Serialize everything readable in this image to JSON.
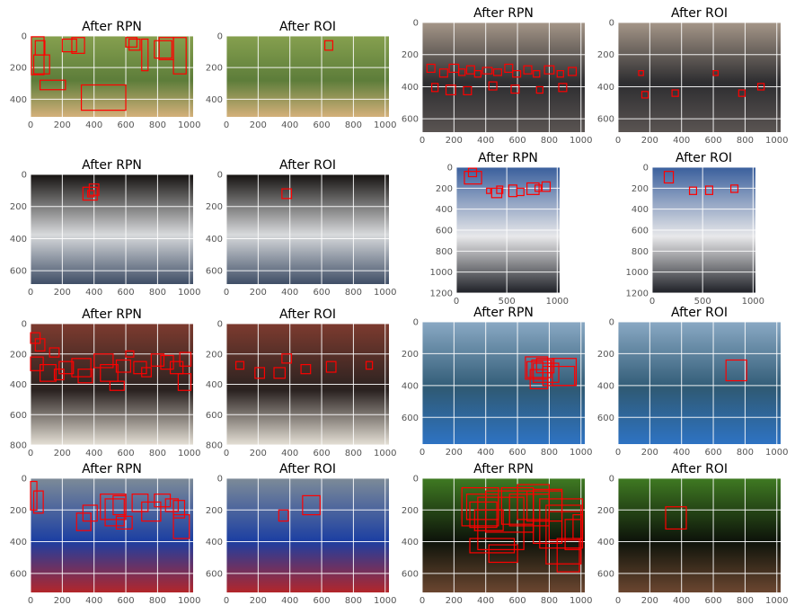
{
  "chart_data": [
    {
      "type": "image",
      "title": "After RPN",
      "xticks": [
        "0",
        "200",
        "400",
        "600",
        "800",
        "1000"
      ],
      "yticks": [
        "0",
        "200",
        "400"
      ],
      "xlim": [
        0,
        1024
      ],
      "ylim": [
        512,
        0
      ],
      "tint": [
        "#86a04f",
        "#5d7d3a",
        "#d4b07a"
      ],
      "boxes": [
        [
          5,
          5,
          80,
          240
        ],
        [
          30,
          30,
          60,
          90
        ],
        [
          200,
          20,
          90,
          80
        ],
        [
          260,
          10,
          80,
          100
        ],
        [
          600,
          10,
          70,
          60
        ],
        [
          620,
          20,
          70,
          70
        ],
        [
          700,
          20,
          40,
          200
        ],
        [
          780,
          30,
          110,
          110
        ],
        [
          810,
          10,
          90,
          140
        ],
        [
          900,
          10,
          80,
          230
        ],
        [
          20,
          120,
          100,
          120
        ],
        [
          60,
          280,
          160,
          60
        ],
        [
          320,
          310,
          280,
          160
        ]
      ]
    },
    {
      "type": "image",
      "title": "After ROI",
      "xticks": [
        "0",
        "200",
        "400",
        "600",
        "800",
        "1000"
      ],
      "yticks": [
        "0",
        "200",
        "400"
      ],
      "xlim": [
        0,
        1024
      ],
      "ylim": [
        512,
        0
      ],
      "tint": [
        "#86a04f",
        "#5d7d3a",
        "#d4b07a"
      ],
      "boxes": [
        [
          620,
          30,
          50,
          60
        ]
      ]
    },
    {
      "type": "image",
      "title": "After RPN",
      "xticks": [
        "0",
        "200",
        "400",
        "600",
        "800",
        "1000"
      ],
      "yticks": [
        "0",
        "200",
        "400",
        "600"
      ],
      "xlim": [
        0,
        1024
      ],
      "ylim": [
        683,
        0
      ],
      "tint": [
        "#a59688",
        "#2d2d30",
        "#5a5452"
      ],
      "boxes": [
        [
          30,
          260,
          50,
          50
        ],
        [
          110,
          290,
          50,
          50
        ],
        [
          170,
          260,
          60,
          50
        ],
        [
          230,
          290,
          40,
          40
        ],
        [
          280,
          270,
          50,
          50
        ],
        [
          330,
          300,
          40,
          40
        ],
        [
          380,
          280,
          60,
          40
        ],
        [
          450,
          290,
          50,
          40
        ],
        [
          520,
          260,
          50,
          50
        ],
        [
          570,
          300,
          50,
          40
        ],
        [
          640,
          270,
          50,
          50
        ],
        [
          700,
          300,
          40,
          40
        ],
        [
          770,
          270,
          60,
          50
        ],
        [
          850,
          300,
          40,
          40
        ],
        [
          920,
          280,
          50,
          50
        ],
        [
          60,
          380,
          40,
          50
        ],
        [
          150,
          390,
          60,
          60
        ],
        [
          260,
          400,
          50,
          50
        ],
        [
          420,
          370,
          50,
          50
        ],
        [
          560,
          390,
          50,
          50
        ],
        [
          720,
          400,
          40,
          40
        ],
        [
          860,
          380,
          50,
          50
        ]
      ]
    },
    {
      "type": "image",
      "title": "After ROI",
      "xticks": [
        "0",
        "200",
        "400",
        "600",
        "800",
        "1000"
      ],
      "yticks": [
        "0",
        "200",
        "400",
        "600"
      ],
      "xlim": [
        0,
        1024
      ],
      "ylim": [
        683,
        0
      ],
      "tint": [
        "#a59688",
        "#2d2d30",
        "#5a5452"
      ],
      "boxes": [
        [
          130,
          300,
          30,
          30
        ],
        [
          600,
          300,
          30,
          30
        ],
        [
          150,
          430,
          40,
          40
        ],
        [
          340,
          420,
          40,
          40
        ],
        [
          760,
          420,
          40,
          40
        ],
        [
          880,
          380,
          40,
          40
        ]
      ]
    },
    {
      "type": "image",
      "title": "After RPN",
      "xticks": [
        "0",
        "200",
        "400",
        "600",
        "800",
        "1000"
      ],
      "yticks": [
        "0",
        "200",
        "400",
        "600"
      ],
      "xlim": [
        0,
        1024
      ],
      "ylim": [
        683,
        0
      ],
      "tint": [
        "#151210",
        "#d8dadc",
        "#3f4e66"
      ],
      "boxes": [
        [
          330,
          80,
          90,
          80
        ],
        [
          370,
          60,
          60,
          70
        ],
        [
          360,
          100,
          40,
          40
        ]
      ]
    },
    {
      "type": "image",
      "title": "After ROI",
      "xticks": [
        "0",
        "200",
        "400",
        "600",
        "800",
        "1000"
      ],
      "yticks": [
        "0",
        "200",
        "400",
        "600"
      ],
      "xlim": [
        0,
        1024
      ],
      "ylim": [
        683,
        0
      ],
      "tint": [
        "#151210",
        "#d8dadc",
        "#3f4e66"
      ],
      "boxes": [
        [
          350,
          90,
          60,
          60
        ]
      ]
    },
    {
      "type": "image",
      "title": "After RPN",
      "xticks": [
        "0",
        "500",
        "1000"
      ],
      "yticks": [
        "0",
        "200",
        "400",
        "600",
        "800",
        "1000",
        "1200"
      ],
      "xlim": [
        0,
        1024
      ],
      "ylim": [
        1200,
        0
      ],
      "tint": [
        "#3a5f9c",
        "#e8e8ea",
        "#1e2026"
      ],
      "boxes": [
        [
          80,
          40,
          170,
          120
        ],
        [
          120,
          10,
          80,
          80
        ],
        [
          350,
          200,
          100,
          90
        ],
        [
          400,
          180,
          60,
          70
        ],
        [
          520,
          170,
          80,
          110
        ],
        [
          600,
          200,
          70,
          70
        ],
        [
          700,
          150,
          120,
          110
        ],
        [
          780,
          170,
          60,
          60
        ],
        [
          850,
          140,
          80,
          90
        ],
        [
          300,
          200,
          40,
          50
        ]
      ]
    },
    {
      "type": "image",
      "title": "After ROI",
      "xticks": [
        "0",
        "500",
        "1000"
      ],
      "yticks": [
        "0",
        "200",
        "400",
        "600",
        "800",
        "1000",
        "1200"
      ],
      "xlim": [
        0,
        1024
      ],
      "ylim": [
        1200,
        0
      ],
      "tint": [
        "#3a5f9c",
        "#e8e8ea",
        "#1e2026"
      ],
      "boxes": [
        [
          120,
          40,
          90,
          110
        ],
        [
          370,
          190,
          70,
          70
        ],
        [
          530,
          180,
          70,
          80
        ],
        [
          780,
          170,
          70,
          70
        ]
      ]
    },
    {
      "type": "image",
      "title": "After RPN",
      "xticks": [
        "0",
        "200",
        "400",
        "600",
        "800",
        "1000"
      ],
      "yticks": [
        "0",
        "200",
        "400",
        "600",
        "800"
      ],
      "xlim": [
        0,
        1024
      ],
      "ylim": [
        800,
        0
      ],
      "tint": [
        "#7d3b2f",
        "#2a2220",
        "#e5e0d6"
      ],
      "boxes": [
        [
          0,
          60,
          60,
          70
        ],
        [
          30,
          100,
          60,
          80
        ],
        [
          120,
          160,
          60,
          60
        ],
        [
          0,
          220,
          80,
          90
        ],
        [
          60,
          270,
          100,
          110
        ],
        [
          180,
          250,
          90,
          80
        ],
        [
          260,
          230,
          120,
          120
        ],
        [
          300,
          300,
          90,
          90
        ],
        [
          400,
          200,
          120,
          90
        ],
        [
          440,
          270,
          110,
          110
        ],
        [
          540,
          240,
          90,
          80
        ],
        [
          650,
          250,
          80,
          80
        ],
        [
          700,
          290,
          60,
          60
        ],
        [
          760,
          200,
          80,
          80
        ],
        [
          820,
          210,
          80,
          90
        ],
        [
          880,
          250,
          80,
          80
        ],
        [
          930,
          330,
          80,
          110
        ],
        [
          940,
          190,
          70,
          90
        ],
        [
          500,
          380,
          90,
          60
        ],
        [
          600,
          180,
          50,
          40
        ],
        [
          150,
          300,
          60,
          70
        ]
      ]
    },
    {
      "type": "image",
      "title": "After ROI",
      "xticks": [
        "0",
        "200",
        "400",
        "600",
        "800",
        "1000"
      ],
      "yticks": [
        "0",
        "200",
        "400",
        "600",
        "800"
      ],
      "xlim": [
        0,
        1024
      ],
      "ylim": [
        800,
        0
      ],
      "tint": [
        "#7d3b2f",
        "#2a2220",
        "#e5e0d6"
      ],
      "boxes": [
        [
          60,
          250,
          50,
          50
        ],
        [
          180,
          290,
          60,
          70
        ],
        [
          300,
          290,
          70,
          70
        ],
        [
          470,
          270,
          60,
          60
        ],
        [
          630,
          250,
          60,
          70
        ],
        [
          880,
          250,
          40,
          50
        ],
        [
          350,
          200,
          60,
          60
        ]
      ]
    },
    {
      "type": "image",
      "title": "After RPN",
      "xticks": [
        "0",
        "200",
        "400",
        "600",
        "800",
        "1000"
      ],
      "yticks": [
        "0",
        "200",
        "400",
        "600"
      ],
      "xlim": [
        0,
        1024
      ],
      "ylim": [
        768,
        0
      ],
      "tint": [
        "#8aa9c4",
        "#2f5a75",
        "#2e73c3"
      ],
      "boxes": [
        [
          650,
          220,
          140,
          140
        ],
        [
          690,
          240,
          120,
          110
        ],
        [
          700,
          260,
          160,
          120
        ],
        [
          720,
          230,
          110,
          90
        ],
        [
          760,
          280,
          200,
          120
        ],
        [
          820,
          230,
          150,
          170
        ],
        [
          680,
          300,
          110,
          120
        ],
        [
          660,
          250,
          100,
          100
        ]
      ]
    },
    {
      "type": "image",
      "title": "After ROI",
      "xticks": [
        "0",
        "200",
        "400",
        "600",
        "800",
        "1000"
      ],
      "yticks": [
        "0",
        "200",
        "400",
        "600"
      ],
      "xlim": [
        0,
        1024
      ],
      "ylim": [
        768,
        0
      ],
      "tint": [
        "#8aa9c4",
        "#2f5a75",
        "#2e73c3"
      ],
      "boxes": [
        [
          680,
          240,
          130,
          130
        ]
      ]
    },
    {
      "type": "image",
      "title": "After RPN",
      "xticks": [
        "0",
        "200",
        "400",
        "600",
        "800",
        "1000"
      ],
      "yticks": [
        "0",
        "200",
        "400",
        "600"
      ],
      "xlim": [
        0,
        1024
      ],
      "ylim": [
        720,
        0
      ],
      "tint": [
        "#7d8b98",
        "#1c3fa2",
        "#b3262a"
      ],
      "boxes": [
        [
          0,
          20,
          40,
          180
        ],
        [
          20,
          80,
          60,
          140
        ],
        [
          290,
          220,
          90,
          110
        ],
        [
          330,
          170,
          90,
          100
        ],
        [
          440,
          100,
          160,
          160
        ],
        [
          470,
          130,
          120,
          170
        ],
        [
          520,
          110,
          80,
          120
        ],
        [
          640,
          100,
          100,
          110
        ],
        [
          700,
          150,
          120,
          120
        ],
        [
          780,
          100,
          100,
          80
        ],
        [
          850,
          130,
          80,
          80
        ],
        [
          900,
          140,
          70,
          110
        ],
        [
          900,
          230,
          100,
          150
        ],
        [
          540,
          240,
          100,
          80
        ]
      ]
    },
    {
      "type": "image",
      "title": "After ROI",
      "xticks": [
        "0",
        "200",
        "400",
        "600",
        "800",
        "1000"
      ],
      "yticks": [
        "0",
        "200",
        "400",
        "600"
      ],
      "xlim": [
        0,
        1024
      ],
      "ylim": [
        720,
        0
      ],
      "tint": [
        "#7d8b98",
        "#1c3fa2",
        "#b3262a"
      ],
      "boxes": [
        [
          480,
          110,
          110,
          120
        ],
        [
          330,
          200,
          60,
          70
        ]
      ]
    },
    {
      "type": "image",
      "title": "After RPN",
      "xticks": [
        "0",
        "200",
        "400",
        "600",
        "800",
        "1000"
      ],
      "yticks": [
        "0",
        "200",
        "400",
        "600"
      ],
      "xlim": [
        0,
        1024
      ],
      "ylim": [
        720,
        0
      ],
      "tint": [
        "#3f7a22",
        "#0d130a",
        "#6b4630"
      ],
      "boxes": [
        [
          250,
          60,
          230,
          240
        ],
        [
          280,
          100,
          200,
          160
        ],
        [
          300,
          150,
          170,
          160
        ],
        [
          330,
          200,
          180,
          130
        ],
        [
          350,
          120,
          290,
          330
        ],
        [
          400,
          80,
          300,
          260
        ],
        [
          500,
          60,
          200,
          230
        ],
        [
          550,
          100,
          250,
          200
        ],
        [
          600,
          40,
          200,
          220
        ],
        [
          660,
          80,
          220,
          190
        ],
        [
          700,
          70,
          180,
          340
        ],
        [
          740,
          130,
          270,
          310
        ],
        [
          780,
          170,
          220,
          370
        ],
        [
          800,
          210,
          200,
          180
        ],
        [
          850,
          380,
          140,
          210
        ],
        [
          900,
          260,
          100,
          190
        ],
        [
          950,
          230,
          60,
          150
        ],
        [
          300,
          380,
          280,
          90
        ],
        [
          420,
          420,
          180,
          110
        ]
      ]
    },
    {
      "type": "image",
      "title": "After ROI",
      "xticks": [
        "0",
        "200",
        "400",
        "600",
        "800",
        "1000"
      ],
      "yticks": [
        "0",
        "200",
        "400",
        "600"
      ],
      "xlim": [
        0,
        1024
      ],
      "ylim": [
        720,
        0
      ],
      "tint": [
        "#3f7a22",
        "#0d130a",
        "#6b4630"
      ],
      "boxes": [
        [
          300,
          180,
          130,
          140
        ]
      ]
    }
  ]
}
